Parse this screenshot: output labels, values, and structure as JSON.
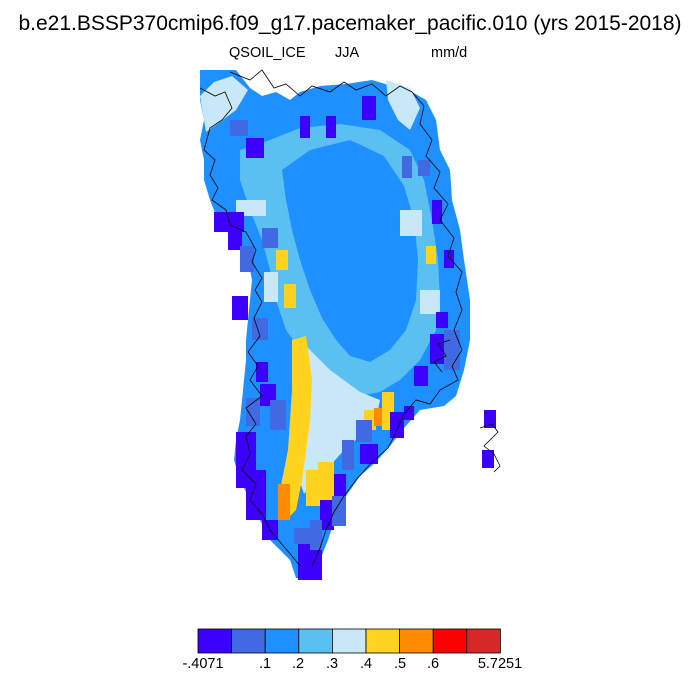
{
  "header": {
    "title": "b.e21.BSSP370cmip6.f09_g17.pacemaker_pacific.010 (yrs 2015-2018)",
    "variable": "QSOIL_ICE",
    "season": "JJA",
    "units": "mm/d"
  },
  "colorbar": {
    "colors": [
      "#3b00ff",
      "#4169e1",
      "#1e90ff",
      "#5ac0f2",
      "#c8e8f8",
      "#ffd21e",
      "#ff8c00",
      "#ff0000",
      "#d72828"
    ],
    "labels": [
      "-.4071",
      ".1",
      ".2",
      ".3",
      ".4",
      ".5",
      ".6",
      "5.7251"
    ]
  },
  "map": {
    "region": "Greenland",
    "colors": {
      "deep": "#3b00ff",
      "blue": "#4169e1",
      "mid": "#1e90ff",
      "light": "#5ac0f2",
      "pale": "#c8e8f8",
      "yellow": "#ffd21e",
      "orange": "#ff8c00",
      "coast": "#000000"
    }
  }
}
